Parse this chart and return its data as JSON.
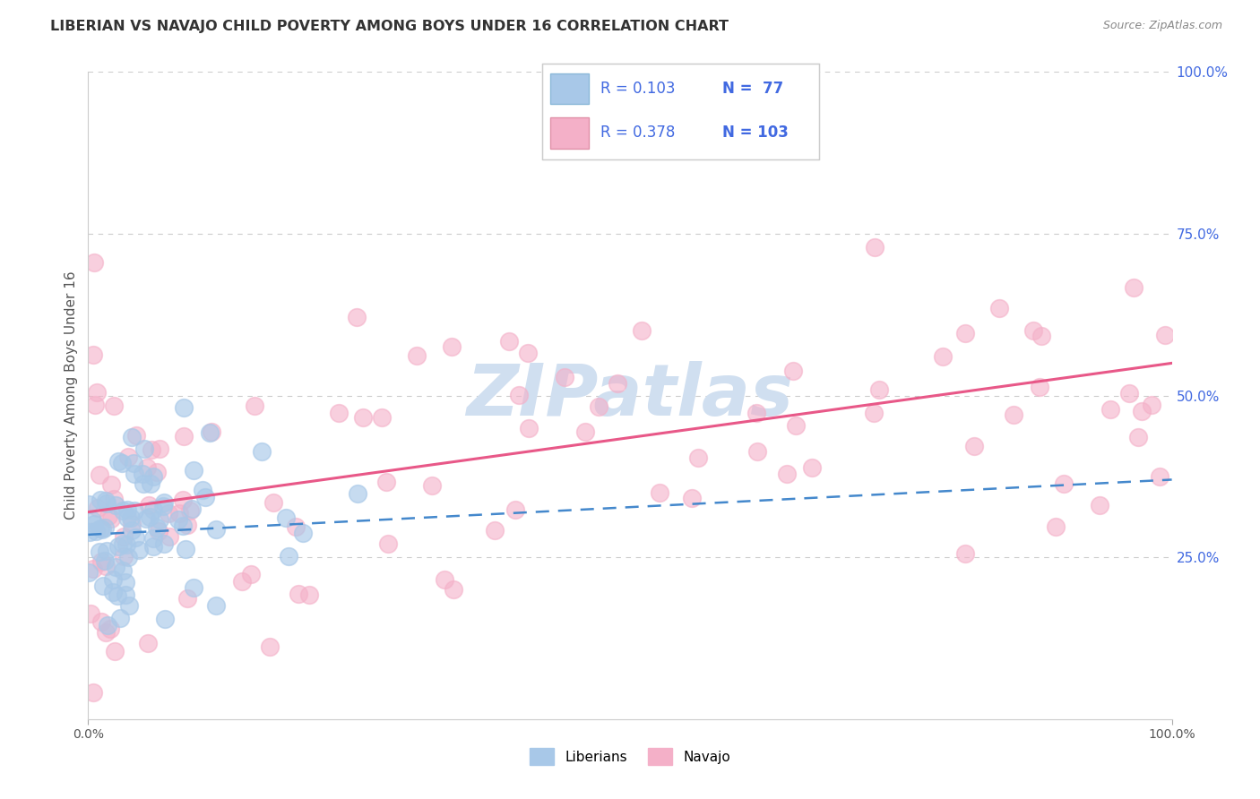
{
  "title": "LIBERIAN VS NAVAJO CHILD POVERTY AMONG BOYS UNDER 16 CORRELATION CHART",
  "source": "Source: ZipAtlas.com",
  "ylabel": "Child Poverty Among Boys Under 16",
  "xlim": [
    0.0,
    1.0
  ],
  "ylim": [
    0.0,
    1.0
  ],
  "liberian_R": 0.103,
  "liberian_N": 77,
  "navajo_R": 0.378,
  "navajo_N": 103,
  "liberian_color": "#a8c8e8",
  "navajo_color": "#f4b0c8",
  "liberian_line_color": "#4488cc",
  "navajo_line_color": "#e85888",
  "background_color": "#ffffff",
  "grid_color": "#cccccc",
  "right_tick_color": "#4169e1",
  "watermark_color": "#d0dff0",
  "legend_text_color": "#4169e1",
  "title_color": "#333333",
  "source_color": "#888888",
  "ylabel_color": "#555555"
}
